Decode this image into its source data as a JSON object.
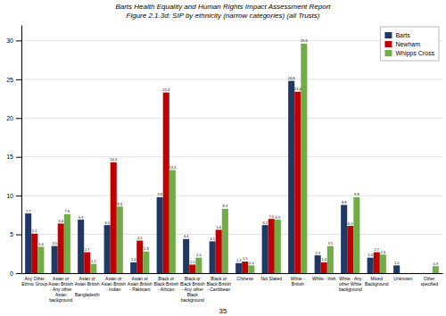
{
  "chart_data": {
    "type": "bar",
    "title": "Barts Health Equality and Human Rights Impact Assessment Report",
    "subtitle": "Figure 2.1.3d: SIP by ethnicity (narrow categories) (all Trusts)",
    "annotations": [
      "35"
    ],
    "categories": [
      "Any Other\nEthnic Group",
      "Asian or\nAsian British\n- Any other\nAsian\nbackground",
      "Asian or\nAsian British\n-\nBangladeshi",
      "Asian or\nAsian British\n- Indian",
      "Asian or\nAsian British\n- Pakistani",
      "Black or\nBlack British\n- African",
      "Black or\nBlack British\n- Any other\nBlack\nbackground",
      "Black or\nBlack British\n- Caribbean",
      "Chinese",
      "Not Stated",
      "White -\nBritish",
      "White - Irish",
      "White - Any\nother White\nbackground",
      "Mixed\nBackground",
      "Unknown",
      "Other\nspecified"
    ],
    "series": [
      {
        "name": "Barts",
        "color": "#1F3864",
        "values": [
          7.7,
          3.5,
          6.9,
          6.2,
          1.4,
          9.8,
          4.4,
          4.1,
          1.3,
          6.2,
          24.8,
          2.3,
          8.8,
          2.0,
          1.0,
          0.0
        ],
        "value_labels": [
          "7.7",
          "3.5",
          "6.9",
          "6.2",
          "1.4",
          "9.8",
          "4.4",
          "4.1",
          "1.3",
          "6.2",
          "24.8",
          "2.3",
          "8.8",
          "2.0",
          "1.0",
          null
        ]
      },
      {
        "name": "Newham",
        "color": "#C00000",
        "values": [
          5.1,
          6.4,
          2.7,
          14.3,
          4.2,
          23.3,
          1.1,
          5.6,
          1.5,
          7.0,
          23.4,
          1.4,
          6.1,
          2.7,
          0.0,
          0.0
        ],
        "value_labels": [
          "5.1",
          "6.4",
          "2.7",
          "14.3",
          "4.2",
          "23.3",
          "1.1",
          "5.6",
          "1.5",
          "7.0",
          "23.4",
          "1.4",
          "6.1",
          "2.7",
          null,
          null
        ]
      },
      {
        "name": "Whipps Cross",
        "color": "#70AD47",
        "values": [
          3.4,
          7.6,
          1.2,
          8.6,
          2.8,
          13.3,
          2.0,
          8.3,
          1.0,
          6.9,
          29.6,
          3.5,
          9.8,
          2.4,
          0.0,
          0.9
        ],
        "value_labels": [
          "3.4",
          "7.6",
          "1.2",
          "8.6",
          "2.8",
          "13.3",
          "2.0",
          "8.3",
          "1.0",
          "6.9",
          "29.6",
          "3.5",
          "9.8",
          "2.4",
          null,
          "0.9"
        ]
      }
    ],
    "ylim": [
      0,
      32
    ],
    "yticks": [
      0,
      5,
      10,
      15,
      20,
      25,
      30
    ],
    "grid": true,
    "legend": "upper right",
    "data_labels": true
  }
}
